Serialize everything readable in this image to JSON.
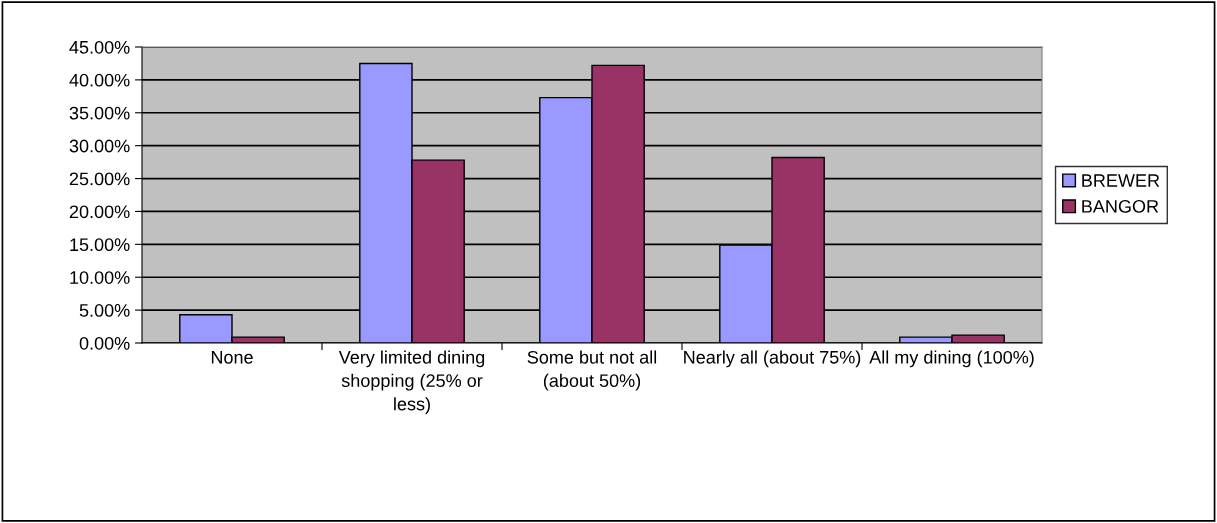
{
  "chart_data": {
    "type": "bar",
    "categories": [
      "None",
      "Very limited dining shopping (25% or less)",
      "Some but not all (about 50%)",
      "Nearly all (about 75%)",
      "All my dining (100%)"
    ],
    "series": [
      {
        "name": "BREWER",
        "color": "#9999ff",
        "values": [
          4.3,
          42.5,
          37.3,
          14.9,
          0.9
        ]
      },
      {
        "name": "BANGOR",
        "color": "#993366",
        "values": [
          0.9,
          27.8,
          42.2,
          28.2,
          1.2
        ]
      }
    ],
    "ylim": [
      0,
      45
    ],
    "yticks": [
      {
        "value": 0,
        "label": "0.00%"
      },
      {
        "value": 5,
        "label": "5.00%"
      },
      {
        "value": 10,
        "label": "10.00%"
      },
      {
        "value": 15,
        "label": "15.00%"
      },
      {
        "value": 20,
        "label": "20.00%"
      },
      {
        "value": 25,
        "label": "25.00%"
      },
      {
        "value": 30,
        "label": "30.00%"
      },
      {
        "value": 35,
        "label": "35.00%"
      },
      {
        "value": 40,
        "label": "40.00%"
      },
      {
        "value": 45,
        "label": "45.00%"
      }
    ],
    "grid": "y",
    "legend": "right"
  }
}
